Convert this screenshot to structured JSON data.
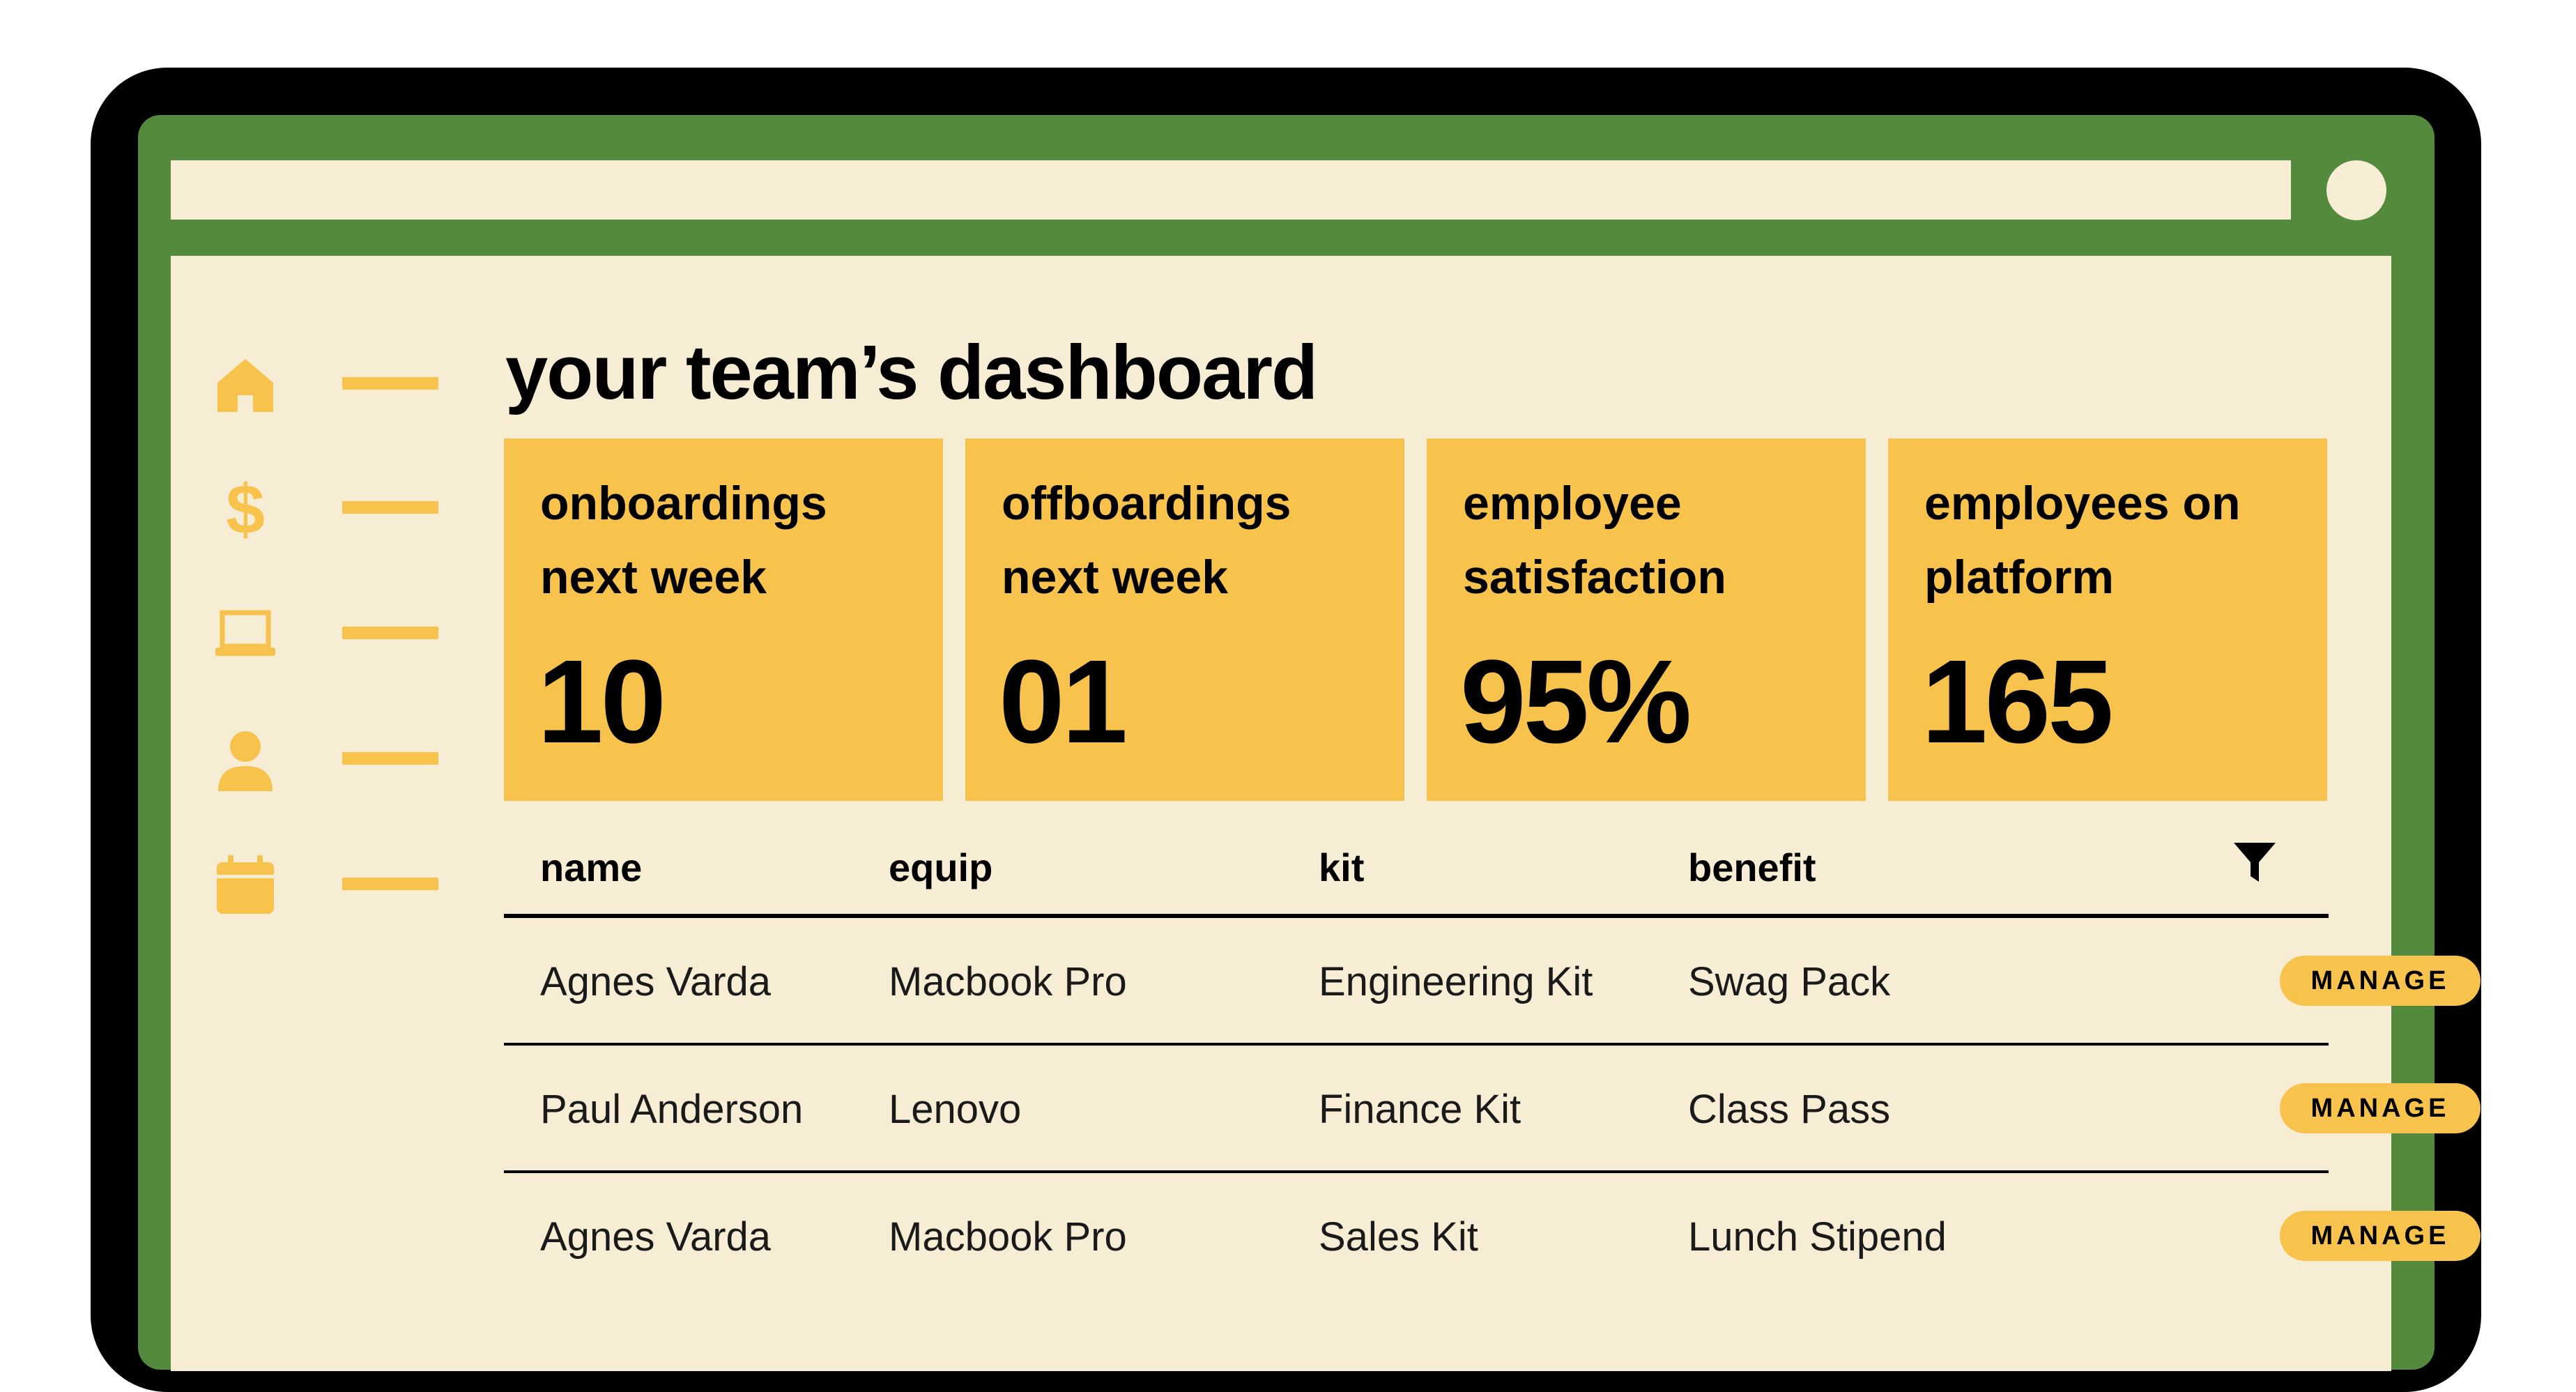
{
  "colors": {
    "frame": "#000000",
    "bezel": "#548a3e",
    "screen": "#f7edd4",
    "accent": "#f7c34c"
  },
  "sidebar": {
    "items": [
      {
        "icon": "home-icon"
      },
      {
        "icon": "dollar-icon"
      },
      {
        "icon": "laptop-icon"
      },
      {
        "icon": "user-icon"
      },
      {
        "icon": "calendar-icon"
      }
    ]
  },
  "dashboard": {
    "title": "your team’s dashboard",
    "cards": [
      {
        "label": "onboardings next week",
        "value": "10"
      },
      {
        "label": "offboardings next week",
        "value": "01"
      },
      {
        "label": "employee satisfaction",
        "value": "95%"
      },
      {
        "label": "employees on platform",
        "value": "165"
      }
    ]
  },
  "table": {
    "columns": [
      "name",
      "equip",
      "kit",
      "benefit"
    ],
    "filter_icon": "filter-icon",
    "action_label": "MANAGE",
    "rows": [
      {
        "name": "Agnes Varda",
        "equip": "Macbook Pro",
        "kit": "Engineering Kit",
        "benefit": "Swag Pack"
      },
      {
        "name": "Paul Anderson",
        "equip": "Lenovo",
        "kit": "Finance Kit",
        "benefit": "Class Pass"
      },
      {
        "name": "Agnes Varda",
        "equip": "Macbook Pro",
        "kit": "Sales Kit",
        "benefit": "Lunch Stipend"
      }
    ]
  }
}
